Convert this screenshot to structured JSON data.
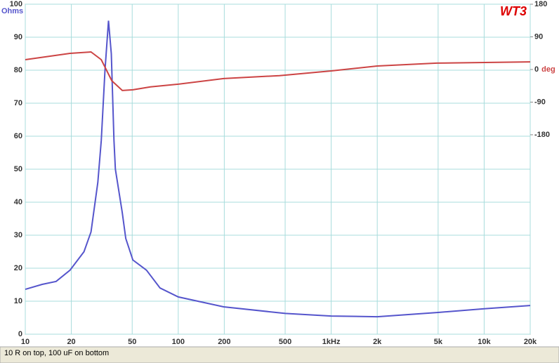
{
  "chart_data": {
    "type": "line",
    "title": "WT3",
    "caption": "10 R on top, 100 uF on bottom",
    "ylabel": "Ohms",
    "y2label": "deg",
    "xscale": "log",
    "xlim": [
      10,
      20000
    ],
    "xticks": [
      10,
      20,
      50,
      100,
      200,
      500,
      {
        "value": 1000,
        "label": "1kHz"
      },
      {
        "value": 2000,
        "label": "2k"
      },
      {
        "value": 5000,
        "label": "5k"
      },
      {
        "value": 10000,
        "label": "10k"
      },
      {
        "value": 20000,
        "label": "20k"
      }
    ],
    "ylim": [
      0,
      100
    ],
    "yticks": [
      0,
      10,
      20,
      30,
      40,
      50,
      60,
      70,
      80,
      90,
      100
    ],
    "y2lim": [
      -730,
      180
    ],
    "y2ticks": [
      180,
      90,
      0,
      -90,
      -180
    ],
    "grid": true,
    "series": [
      {
        "color": "#5555cc",
        "axis": "y",
        "x": [
          10,
          12.9,
          15.9,
          19.6,
          24.2,
          26.9,
          29.8,
          31.4,
          33.2,
          35,
          36.5,
          38,
          38.8,
          43,
          45.4,
          50.5,
          62,
          76,
          100,
          198,
          500,
          1000,
          2000,
          5000,
          10000,
          20000
        ],
        "values": [
          13.6,
          15.1,
          16,
          19.4,
          25,
          31,
          46,
          58.7,
          80,
          95,
          85,
          58.7,
          50,
          37,
          29,
          22.5,
          19.4,
          14,
          11.3,
          8.3,
          6.3,
          5.5,
          5.3,
          6.6,
          7.7,
          8.7
        ]
      },
      {
        "color": "#cc4444",
        "axis": "y2",
        "x": [
          10,
          19.6,
          26.9,
          31.4,
          36.8,
          43.1,
          50.5,
          65.7,
          100,
          198,
          459,
          1000,
          2000,
          4900,
          20000
        ],
        "values": [
          27,
          44.5,
          48.4,
          27,
          -31,
          -58,
          -56,
          -48,
          -40.6,
          -25,
          -17,
          -4,
          9.7,
          17.5,
          21
        ]
      }
    ]
  }
}
